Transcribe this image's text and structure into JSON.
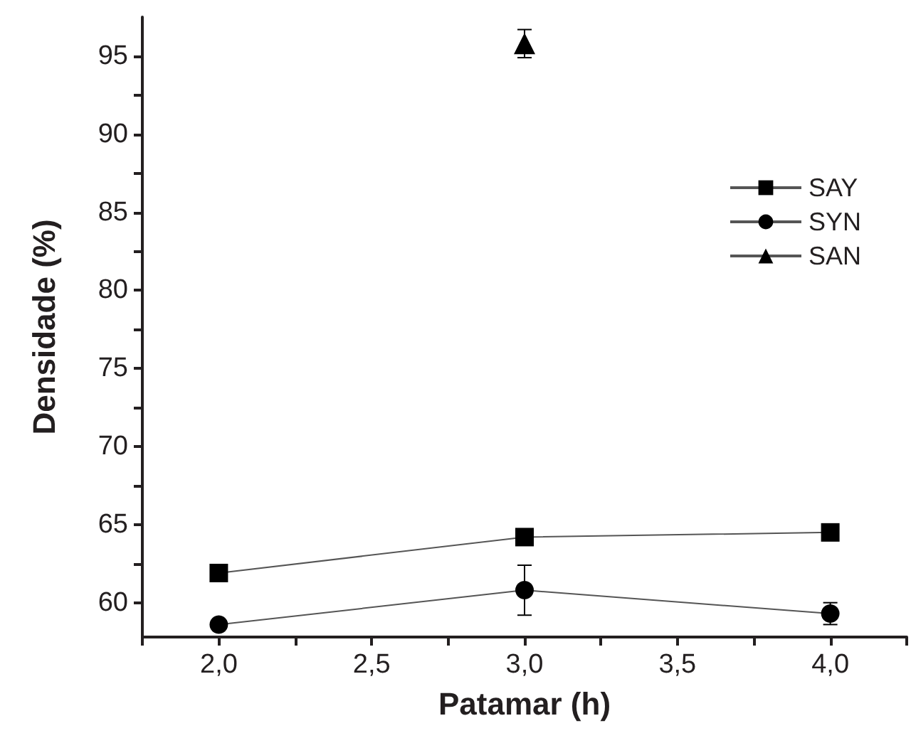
{
  "chart_data": {
    "type": "line",
    "xlabel": "Patamar (h)",
    "ylabel": "Densidade (%)",
    "x": [
      2.0,
      3.0,
      4.0
    ],
    "series": [
      {
        "name": "SAY",
        "color": "#000000",
        "marker": "square",
        "values": [
          61.9,
          64.2,
          64.5
        ]
      },
      {
        "name": "SYN",
        "color": "#000000",
        "marker": "circle",
        "values": [
          58.6,
          60.8,
          59.3
        ],
        "errors": [
          null,
          1.6,
          0.7
        ]
      },
      {
        "name": "SAN",
        "color": "#000000",
        "marker": "triangle",
        "x": [
          3.0
        ],
        "values": [
          95.8
        ],
        "errors": [
          0.9
        ]
      }
    ],
    "xlim": [
      1.75,
      4.25
    ],
    "xticks": [
      {
        "value": 1.75,
        "label": null
      },
      {
        "value": 2.0,
        "label": "2,0"
      },
      {
        "value": 2.25,
        "label": null
      },
      {
        "value": 2.5,
        "label": "2,5"
      },
      {
        "value": 2.75,
        "label": null
      },
      {
        "value": 3.0,
        "label": "3,0"
      },
      {
        "value": 3.25,
        "label": null
      },
      {
        "value": 3.5,
        "label": "3,5"
      },
      {
        "value": 3.75,
        "label": null
      },
      {
        "value": 4.0,
        "label": "4,0"
      },
      {
        "value": 4.25,
        "label": null
      }
    ],
    "ylim": [
      57.8,
      97.5
    ],
    "yticks": [
      60,
      {
        "value": 62.5,
        "label": null
      },
      65,
      {
        "value": 67.5,
        "label": null
      },
      70,
      {
        "value": 72.5,
        "label": null
      },
      75,
      {
        "value": 77.5,
        "label": null
      },
      80,
      {
        "value": 82.5,
        "label": null
      },
      85,
      {
        "value": 87.5,
        "label": null
      },
      90,
      {
        "value": 92.5,
        "label": null
      },
      95
    ],
    "grid": false,
    "legend": "top right",
    "line_style": "solid"
  }
}
